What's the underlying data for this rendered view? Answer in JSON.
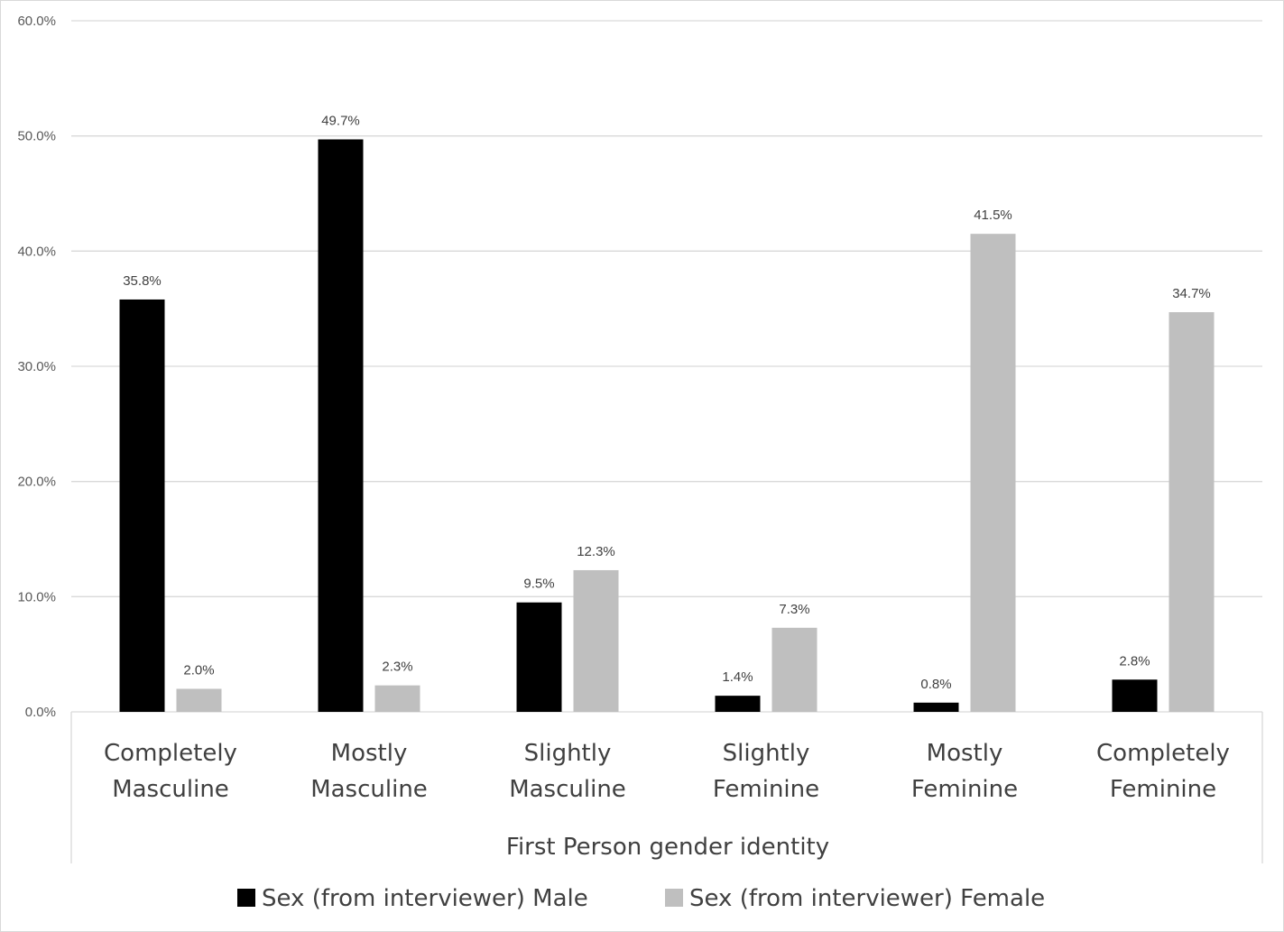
{
  "chart_data": {
    "type": "bar",
    "title": "",
    "xlabel": "First Person gender identity",
    "ylabel": "",
    "ylim": [
      0,
      60
    ],
    "yticks": [
      "0.0%",
      "10.0%",
      "20.0%",
      "30.0%",
      "40.0%",
      "50.0%",
      "60.0%"
    ],
    "ytick_values": [
      0,
      10,
      20,
      30,
      40,
      50,
      60
    ],
    "grid": true,
    "legend_position": "bottom",
    "categories": [
      [
        "Completely",
        "Masculine"
      ],
      [
        "Mostly",
        "Masculine"
      ],
      [
        "Slightly",
        "Masculine"
      ],
      [
        "Slightly",
        "Feminine"
      ],
      [
        "Mostly",
        "Feminine"
      ],
      [
        "Completely",
        "Feminine"
      ]
    ],
    "series": [
      {
        "name": "Sex (from interviewer) Male",
        "color": "#000000",
        "values": [
          35.8,
          49.7,
          9.5,
          1.4,
          0.8,
          2.8
        ],
        "labels": [
          "35.8%",
          "49.7%",
          "9.5%",
          "1.4%",
          "0.8%",
          "2.8%"
        ]
      },
      {
        "name": "Sex (from interviewer) Female",
        "color": "#bfbfbf",
        "values": [
          2.0,
          2.3,
          12.3,
          7.3,
          41.5,
          34.7
        ],
        "labels": [
          "2.0%",
          "2.3%",
          "12.3%",
          "7.3%",
          "41.5%",
          "34.7%"
        ]
      }
    ]
  }
}
